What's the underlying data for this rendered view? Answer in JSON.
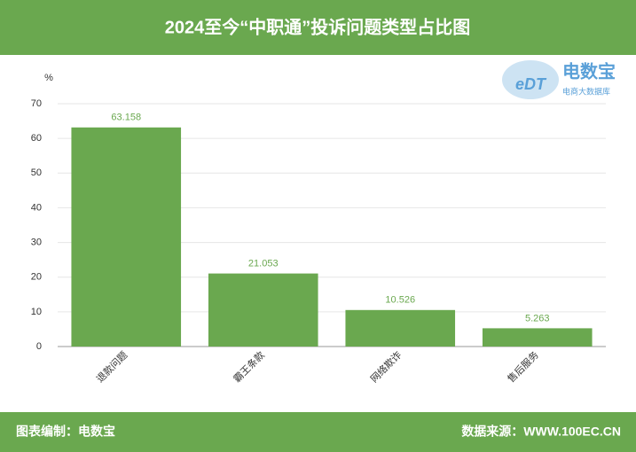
{
  "chart_data": {
    "type": "bar",
    "title": "2024至今“中职通”投诉问题类型占比图",
    "y_unit": "%",
    "categories": [
      "退款问题",
      "霸王条款",
      "网络欺诈",
      "售后服务"
    ],
    "values": [
      63.158,
      21.053,
      10.526,
      5.263
    ],
    "color": "#6aa84f",
    "ylim": [
      0,
      70
    ],
    "yticks": [
      0,
      10,
      20,
      30,
      40,
      50,
      60,
      70
    ],
    "grid": true
  },
  "logo": {
    "name": "电数宝",
    "mark": "eDT",
    "tagline": "电商大数据库"
  },
  "footer": {
    "left": "图表编制：电数宝",
    "right": "数据来源：WWW.100EC.CN"
  }
}
